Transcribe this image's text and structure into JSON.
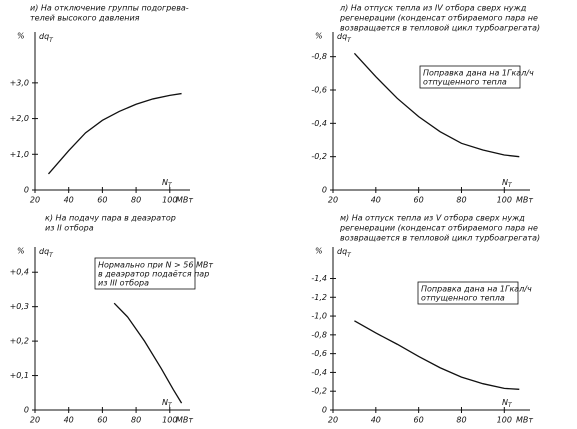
{
  "chart_data": [
    {
      "type": "line",
      "title": [
        "и) На отключение группы подогрева-",
        "телей высокого давления"
      ],
      "ylabel": "%",
      "quantity": "dq",
      "quantity_sub": "T",
      "xlabel": "N",
      "xlabel_sub": "T",
      "xunit": "МВт",
      "xlim": [
        20,
        112
      ],
      "xticks": [
        20,
        40,
        60,
        80,
        100
      ],
      "ylim": [
        0,
        4.2
      ],
      "yticks": [
        0,
        {
          "value": 1,
          "label": "+1,0"
        },
        {
          "value": 2,
          "label": "+2,0"
        },
        {
          "value": 3,
          "label": "+3,0"
        }
      ],
      "x": [
        28,
        40,
        50,
        60,
        70,
        80,
        90,
        100,
        107
      ],
      "series": [
        {
          "color": "#111111",
          "values": [
            0.45,
            1.1,
            1.6,
            1.95,
            2.2,
            2.4,
            2.55,
            2.65,
            2.7
          ]
        }
      ]
    },
    {
      "type": "line",
      "title": [
        "л) На отпуск тепла из IV отбора сверх нужд",
        "регенерации (конденсат отбираемого пара не",
        "возвращается в тепловой цикл турбоагрегата)"
      ],
      "ylabel": "%",
      "quantity": "dq",
      "quantity_sub": "T",
      "xlabel": "N",
      "xlabel_sub": "T",
      "xunit": "МВт",
      "note": [
        "Поправка дана на 1Гкал/ч",
        "отпущенного тепла"
      ],
      "xlim": [
        20,
        112
      ],
      "xticks": [
        20,
        40,
        60,
        80,
        100
      ],
      "ylim": [
        0,
        -0.9
      ],
      "yticks": [
        0,
        {
          "value": -0.2,
          "label": "-0,2"
        },
        {
          "value": -0.4,
          "label": "-0,4"
        },
        {
          "value": -0.6,
          "label": "-0,6"
        },
        {
          "value": -0.8,
          "label": "-0,8"
        }
      ],
      "x": [
        30,
        40,
        50,
        60,
        70,
        80,
        90,
        100,
        107
      ],
      "series": [
        {
          "color": "#111111",
          "values": [
            -0.82,
            -0.68,
            -0.55,
            -0.44,
            -0.35,
            -0.28,
            -0.24,
            -0.21,
            -0.2
          ]
        }
      ]
    },
    {
      "type": "line",
      "title": [
        "к) На подачу пара в деаэратор",
        "из II отбора"
      ],
      "ylabel": "%",
      "quantity": "dq",
      "quantity_sub": "T",
      "xlabel": "N",
      "xlabel_sub": "T",
      "xunit": "МВт",
      "note": [
        "Нормально при N > 56 МВт",
        "в деаэратор подаётся пар",
        "из III отбора"
      ],
      "xlim": [
        20,
        112
      ],
      "xticks": [
        20,
        40,
        60,
        80,
        100
      ],
      "ylim": [
        0,
        0.45
      ],
      "yticks": [
        0,
        {
          "value": 0.1,
          "label": "+0,1"
        },
        {
          "value": 0.2,
          "label": "+0,2"
        },
        {
          "value": 0.3,
          "label": "+0,3"
        },
        {
          "value": 0.4,
          "label": "+0,4"
        }
      ],
      "x": [
        67,
        75,
        85,
        95,
        102,
        107
      ],
      "series": [
        {
          "color": "#111111",
          "values": [
            0.31,
            0.27,
            0.2,
            0.12,
            0.06,
            0.02
          ]
        }
      ]
    },
    {
      "type": "line",
      "title": [
        "м) На отпуск тепла из V отбора сверх нужд",
        "регенерации (конденсат отбираемого пара не",
        "возвращается в тепловой цикл турбоагрегата)"
      ],
      "ylabel": "%",
      "quantity": "dq",
      "quantity_sub": "T",
      "xlabel": "N",
      "xlabel_sub": "T",
      "xunit": "МВт",
      "note": [
        "Поправка дана на 1Гкал/ч",
        "отпущенного тепла"
      ],
      "xlim": [
        20,
        112
      ],
      "xticks": [
        20,
        40,
        60,
        80,
        100
      ],
      "ylim": [
        0,
        -1.65
      ],
      "yticks": [
        0,
        {
          "value": -0.2,
          "label": "-0,2"
        },
        {
          "value": -0.4,
          "label": "-0,4"
        },
        {
          "value": -0.6,
          "label": "-0,6"
        },
        {
          "value": -0.8,
          "label": "-0,8"
        },
        {
          "value": -1,
          "label": "-1,0"
        },
        {
          "value": -1.2,
          "label": "-1,2"
        },
        {
          "value": -1.4,
          "label": "-1,4"
        }
      ],
      "x": [
        30,
        40,
        50,
        60,
        70,
        80,
        90,
        100,
        107
      ],
      "series": [
        {
          "color": "#111111",
          "values": [
            -0.95,
            -0.82,
            -0.7,
            -0.57,
            -0.45,
            -0.35,
            -0.28,
            -0.23,
            -0.22
          ]
        }
      ]
    }
  ]
}
